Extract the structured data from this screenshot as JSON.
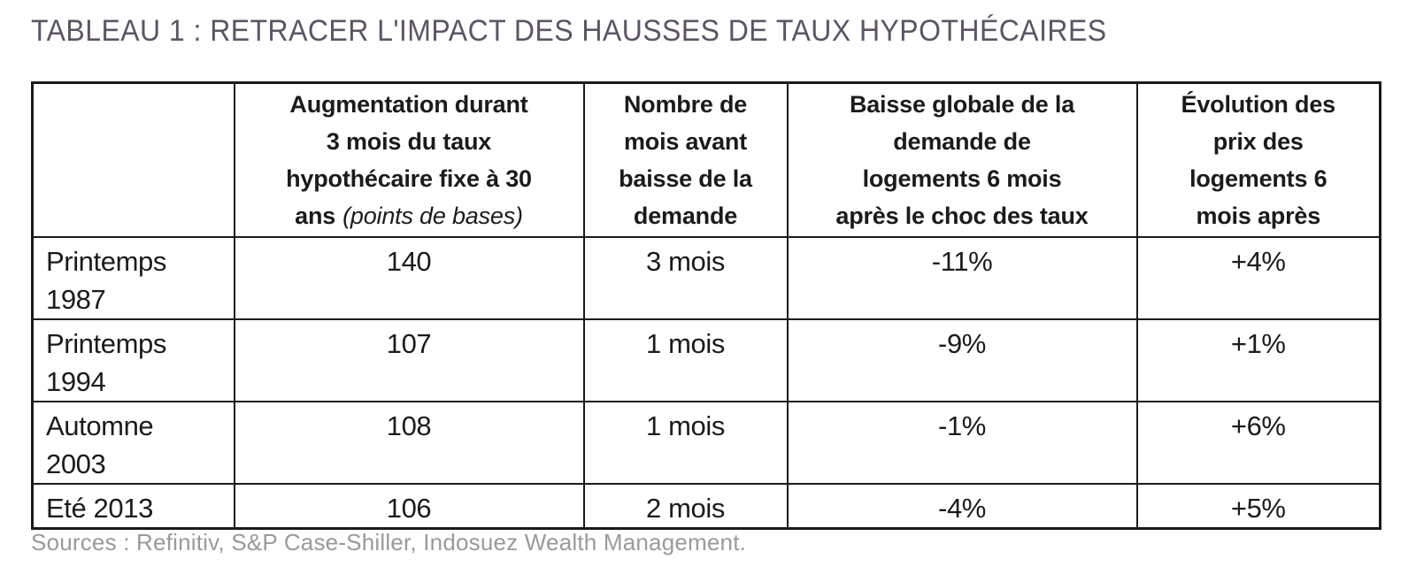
{
  "page": {
    "title": "TABLEAU 1 : RETRACER L'IMPACT DES HAUSSES DE TAUX HYPOTHÉCAIRES",
    "source_note": "Sources : Refinitiv, S&P Case-Shiller, Indosuez Wealth Management."
  },
  "colors": {
    "title_text": "#5c5466",
    "table_text": "#1b1b1b",
    "border": "#1a1a1a",
    "source_text": "#9a9a9a",
    "background": "#ffffff"
  },
  "table": {
    "header": {
      "col1": "",
      "col2_main": "Augmentation durant\n3 mois du taux\nhypothécaire fixe à 30\nans",
      "col2_note": "(points de bases)",
      "col3": "Nombre de\nmois avant\nbaisse de la\ndemande",
      "col4": "Baisse globale de la\ndemande de\nlogements 6 mois\naprès le choc des taux",
      "col5": "Évolution des\nprix des\nlogements 6\nmois après"
    },
    "rows": [
      {
        "label": "Printemps\n1987",
        "rate_increase_bp": "140",
        "months_before_demand_drop": "3 mois",
        "demand_drop_6m": "-11%",
        "price_change_6m": "+4%"
      },
      {
        "label": "Printemps\n1994",
        "rate_increase_bp": "107",
        "months_before_demand_drop": "1 mois",
        "demand_drop_6m": "-9%",
        "price_change_6m": "+1%"
      },
      {
        "label": "Automne\n2003",
        "rate_increase_bp": "108",
        "months_before_demand_drop": "1 mois",
        "demand_drop_6m": "-1%",
        "price_change_6m": "+6%"
      },
      {
        "label": "Eté 2013",
        "rate_increase_bp": "106",
        "months_before_demand_drop": "2 mois",
        "demand_drop_6m": "-4%",
        "price_change_6m": "+5%"
      }
    ]
  },
  "chart_data": {
    "type": "table",
    "title": "TABLEAU 1 : RETRACER L'IMPACT DES HAUSSES DE TAUX HYPOTHÉCAIRES",
    "columns": [
      "",
      "Augmentation durant 3 mois du taux hypothécaire fixe à 30 ans (points de bases)",
      "Nombre de mois avant baisse de la demande",
      "Baisse globale de la demande de logements 6 mois après le choc des taux",
      "Évolution des prix des logements 6 mois après"
    ],
    "rows": [
      [
        "Printemps 1987",
        140,
        "3 mois",
        "-11%",
        "+4%"
      ],
      [
        "Printemps 1994",
        107,
        "1 mois",
        "-9%",
        "+1%"
      ],
      [
        "Automne 2003",
        108,
        "1 mois",
        "-1%",
        "+6%"
      ],
      [
        "Eté 2013",
        106,
        "2 mois",
        "-4%",
        "+5%"
      ]
    ],
    "source": "Sources : Refinitiv, S&P Case-Shiller, Indosuez Wealth Management."
  }
}
